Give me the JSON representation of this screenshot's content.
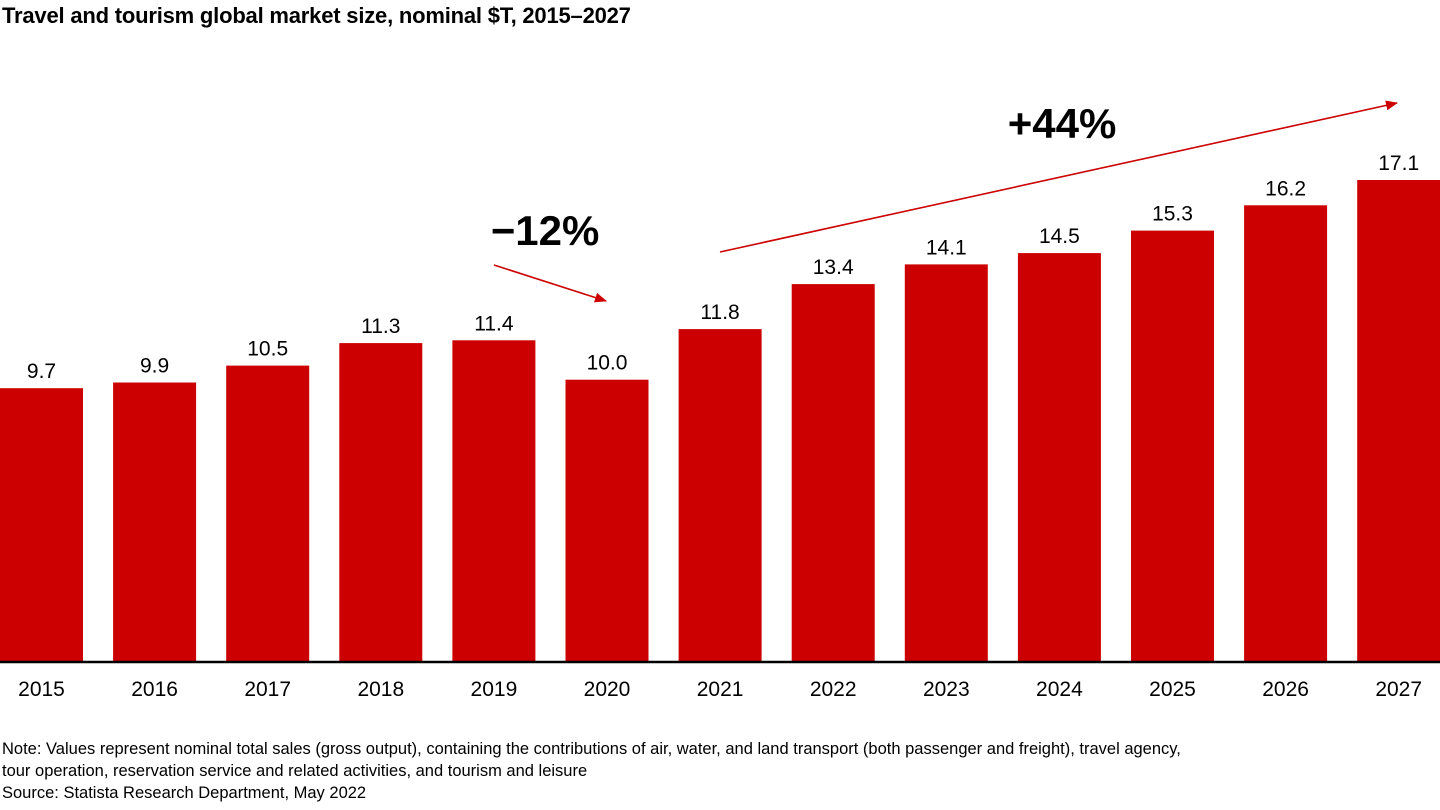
{
  "chart_data": {
    "type": "bar",
    "title": "Travel and tourism global market size, nominal $T, 2015–2027",
    "categories": [
      "2015",
      "2016",
      "2017",
      "2018",
      "2019",
      "2020",
      "2021",
      "2022",
      "2023",
      "2024",
      "2025",
      "2026",
      "2027"
    ],
    "values": [
      9.7,
      9.9,
      10.5,
      11.3,
      11.4,
      10.0,
      11.8,
      13.4,
      14.1,
      14.5,
      15.3,
      16.2,
      17.1
    ],
    "data_labels": [
      "9.7",
      "9.9",
      "10.5",
      "11.3",
      "11.4",
      "10.0",
      "11.8",
      "13.4",
      "14.1",
      "14.5",
      "15.3",
      "16.2",
      "17.1"
    ],
    "xlabel": "",
    "ylabel": "",
    "ylim": [
      0,
      17.1
    ],
    "grid": false,
    "bar_color": "#cc0000",
    "annotations": [
      {
        "text": "−12%",
        "from": "2019",
        "to": "2020",
        "direction": "down"
      },
      {
        "text": "+44%",
        "from": "2021",
        "to": "2027",
        "direction": "up"
      }
    ],
    "arrow_color": "#cc0000"
  },
  "footer": {
    "note_line1": "Note: Values represent nominal total sales (gross output), containing the contributions of air, water, and land transport (both passenger and freight), travel agency,",
    "note_line2": "tour operation, reservation service and related activities, and tourism and leisure",
    "source": "Source: Statista Research Department, May 2022"
  }
}
